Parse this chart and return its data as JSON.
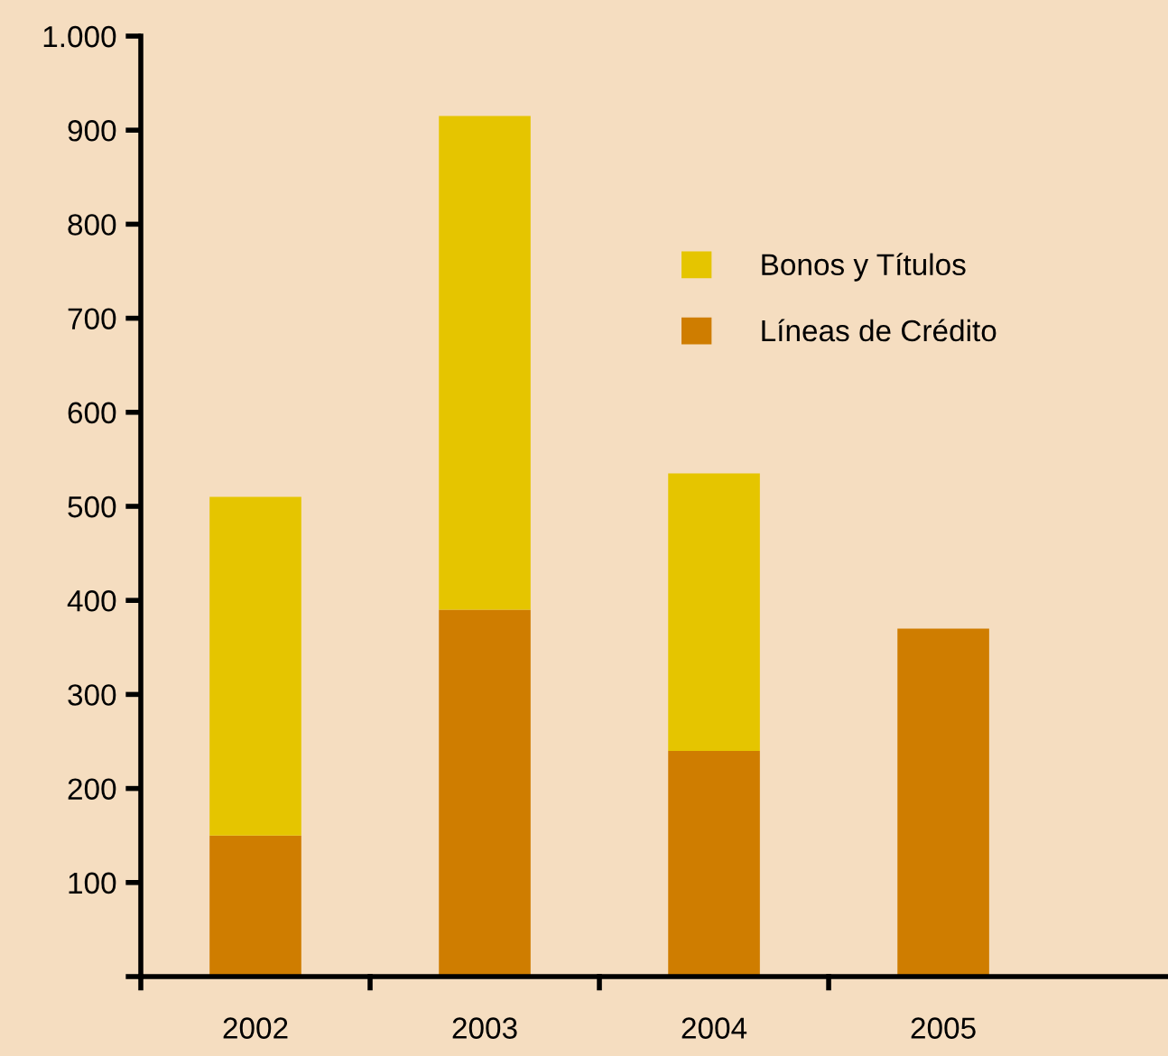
{
  "chart_data": {
    "type": "bar",
    "stacked": true,
    "categories": [
      "2002",
      "2003",
      "2004",
      "2005"
    ],
    "series": [
      {
        "name": "Líneas de Crédito",
        "color": "#cf7d00",
        "values": [
          150,
          390,
          240,
          370
        ]
      },
      {
        "name": "Bonos y Títulos",
        "color": "#e5c500",
        "values": [
          360,
          525,
          295,
          null
        ]
      }
    ],
    "ylim": [
      0,
      1000
    ],
    "yticks": [
      {
        "value": 0,
        "label": null
      },
      100,
      200,
      300,
      400,
      500,
      600,
      700,
      800,
      900,
      {
        "value": 1000,
        "label": "1.000"
      }
    ],
    "grid": false,
    "legend": "top right"
  }
}
